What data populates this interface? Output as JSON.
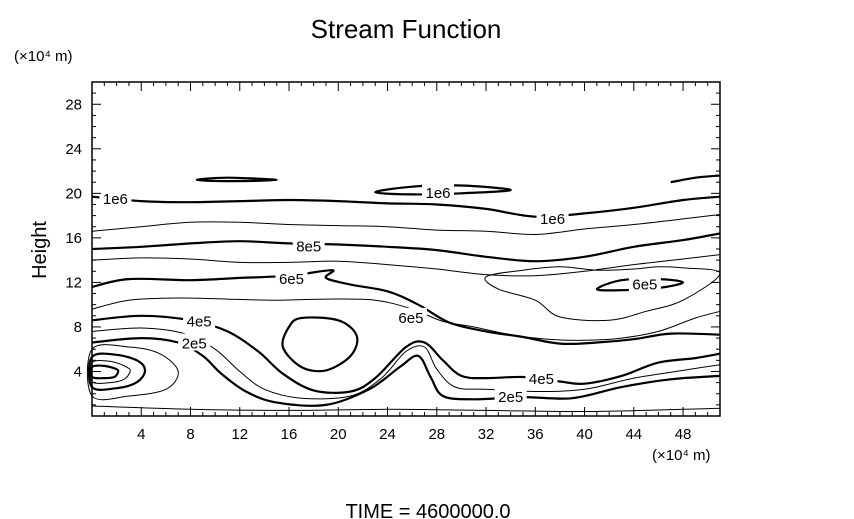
{
  "chart_data": {
    "type": "contour",
    "title": "Stream Function",
    "xlabel": "(×10⁴ m)",
    "ylabel": "Height",
    "yunit": "(×10⁴ m)",
    "xlim": [
      0,
      51
    ],
    "ylim": [
      0,
      30
    ],
    "xticks": [
      4,
      8,
      12,
      16,
      20,
      24,
      28,
      32,
      36,
      40,
      44,
      48
    ],
    "yticks": [
      4,
      8,
      12,
      16,
      20,
      24,
      28
    ],
    "footer": "TIME = 4600000.0",
    "line_color": "#000000",
    "contour_labels": [
      {
        "text": "1e6",
        "x": 1.9,
        "y": 19.6
      },
      {
        "text": "1e6",
        "x": 28.1,
        "y": 20.1
      },
      {
        "text": "1e6",
        "x": 37.4,
        "y": 17.8
      },
      {
        "text": "8e5",
        "x": 17.6,
        "y": 15.3
      },
      {
        "text": "6e5",
        "x": 16.2,
        "y": 12.4
      },
      {
        "text": "6e5",
        "x": 44.9,
        "y": 11.9
      },
      {
        "text": "6e5",
        "x": 25.9,
        "y": 8.9
      },
      {
        "text": "4e5",
        "x": 8.7,
        "y": 8.6
      },
      {
        "text": "2e5",
        "x": 8.3,
        "y": 6.6
      },
      {
        "text": "4e5",
        "x": 36.5,
        "y": 3.4
      },
      {
        "text": "2e5",
        "x": 34.0,
        "y": 1.8
      }
    ],
    "contours": [
      {
        "level": "1e6",
        "points": [
          [
            0,
            19.7
          ],
          [
            4,
            19.3
          ],
          [
            8,
            19.2
          ],
          [
            12,
            19.3
          ],
          [
            16,
            19.4
          ],
          [
            20,
            19.3
          ],
          [
            24,
            19.1
          ],
          [
            28,
            19.0
          ],
          [
            32,
            18.6
          ],
          [
            36,
            17.9
          ],
          [
            40,
            18.2
          ],
          [
            44,
            18.7
          ],
          [
            48,
            19.4
          ],
          [
            51,
            19.7
          ]
        ]
      },
      {
        "level": "1e6",
        "closed": true,
        "points": [
          [
            23,
            20.1
          ],
          [
            26,
            20.6
          ],
          [
            30,
            20.7
          ],
          [
            34,
            20.3
          ],
          [
            30,
            20.0
          ],
          [
            26,
            19.9
          ]
        ]
      },
      {
        "level": "1e6",
        "closed": true,
        "points": [
          [
            8.5,
            21.2
          ],
          [
            11,
            21.4
          ],
          [
            15,
            21.2
          ],
          [
            11,
            21.1
          ]
        ]
      },
      {
        "level": "1e6",
        "points": [
          [
            47,
            21.0
          ],
          [
            49,
            21.4
          ],
          [
            51,
            21.6
          ]
        ]
      },
      {
        "level": "9e5",
        "points": [
          [
            0,
            16.6
          ],
          [
            4,
            17.0
          ],
          [
            8,
            17.4
          ],
          [
            12,
            17.4
          ],
          [
            16,
            17.2
          ],
          [
            20,
            17.1
          ],
          [
            24,
            17.0
          ],
          [
            28,
            16.7
          ],
          [
            32,
            16.6
          ],
          [
            36,
            16.3
          ],
          [
            40,
            16.8
          ],
          [
            44,
            17.2
          ],
          [
            48,
            17.7
          ],
          [
            51,
            18.1
          ]
        ]
      },
      {
        "level": "8e5",
        "points": [
          [
            0,
            15.0
          ],
          [
            4,
            15.2
          ],
          [
            8,
            15.5
          ],
          [
            12,
            15.7
          ],
          [
            16,
            15.5
          ],
          [
            20,
            15.4
          ],
          [
            24,
            15.2
          ],
          [
            28,
            14.9
          ],
          [
            32,
            14.3
          ],
          [
            36,
            13.9
          ],
          [
            40,
            14.3
          ],
          [
            44,
            15.2
          ],
          [
            48,
            15.8
          ],
          [
            51,
            16.4
          ]
        ]
      },
      {
        "level": "7e5",
        "points": [
          [
            0,
            14.0
          ],
          [
            4,
            14.2
          ],
          [
            8,
            14.1
          ],
          [
            12,
            13.8
          ],
          [
            16,
            13.8
          ],
          [
            20,
            13.9
          ],
          [
            24,
            13.6
          ],
          [
            28,
            13.2
          ],
          [
            32,
            12.7
          ],
          [
            36,
            12.6
          ],
          [
            40,
            13.0
          ],
          [
            44,
            13.6
          ],
          [
            48,
            14.1
          ],
          [
            51,
            14.5
          ]
        ]
      },
      {
        "level": "6e5",
        "points": [
          [
            0,
            11.6
          ],
          [
            3,
            12.3
          ],
          [
            8,
            12.2
          ],
          [
            12,
            12.4
          ],
          [
            16,
            12.6
          ],
          [
            19.5,
            13.1
          ],
          [
            19,
            12.4
          ],
          [
            21,
            11.8
          ],
          [
            24,
            11.2
          ],
          [
            26.5,
            10.0
          ],
          [
            29,
            8.4
          ],
          [
            32,
            7.6
          ],
          [
            35,
            7.1
          ],
          [
            38,
            6.5
          ],
          [
            41,
            6.6
          ],
          [
            44,
            6.9
          ],
          [
            47,
            7.4
          ],
          [
            51,
            7.3
          ]
        ]
      },
      {
        "level": "6e5",
        "closed": true,
        "points": [
          [
            41,
            11.4
          ],
          [
            43,
            12.2
          ],
          [
            46,
            12.3
          ],
          [
            48,
            12.0
          ],
          [
            46,
            11.5
          ],
          [
            43,
            11.3
          ]
        ]
      },
      {
        "level": "5e5",
        "points": [
          [
            0,
            9.6
          ],
          [
            3,
            10.4
          ],
          [
            7,
            10.6
          ],
          [
            11,
            10.5
          ],
          [
            15,
            10.4
          ],
          [
            19,
            10.5
          ],
          [
            23,
            10.4
          ],
          [
            26,
            9.6
          ],
          [
            28.5,
            8.5
          ],
          [
            31,
            8.0
          ],
          [
            34,
            7.3
          ],
          [
            37,
            6.9
          ],
          [
            40,
            6.8
          ],
          [
            43,
            7.0
          ],
          [
            46,
            7.6
          ],
          [
            49,
            8.8
          ],
          [
            51,
            9.4
          ]
        ]
      },
      {
        "level": "5e5",
        "closed": true,
        "points": [
          [
            32,
            12.5
          ],
          [
            35,
            13.1
          ],
          [
            38,
            13.4
          ],
          [
            41,
            13.1
          ],
          [
            44,
            13.2
          ],
          [
            46,
            13.4
          ],
          [
            48,
            13.3
          ],
          [
            51,
            12.8
          ],
          [
            48,
            10.4
          ],
          [
            45,
            9.4
          ],
          [
            42,
            8.6
          ],
          [
            38,
            8.9
          ],
          [
            36,
            10.4
          ],
          [
            33,
            11.4
          ]
        ]
      },
      {
        "level": "4e5",
        "points": [
          [
            0,
            8.6
          ],
          [
            4,
            9.0
          ],
          [
            8,
            8.6
          ],
          [
            11,
            7.6
          ],
          [
            13.5,
            5.8
          ],
          [
            15.5,
            3.8
          ],
          [
            18,
            2.3
          ],
          [
            21,
            2.2
          ],
          [
            23,
            3.4
          ],
          [
            25.5,
            6.2
          ],
          [
            27,
            6.6
          ],
          [
            28.5,
            5.0
          ],
          [
            30,
            3.6
          ],
          [
            32,
            3.4
          ],
          [
            35,
            3.5
          ],
          [
            38,
            3.1
          ],
          [
            40,
            2.9
          ],
          [
            43,
            3.6
          ],
          [
            46,
            4.8
          ],
          [
            49,
            5.2
          ],
          [
            51,
            5.6
          ]
        ]
      },
      {
        "level": "4e5",
        "closed": true,
        "points": [
          [
            17,
            8.8
          ],
          [
            20,
            8.6
          ],
          [
            21.5,
            7.2
          ],
          [
            21,
            5.4
          ],
          [
            19,
            4.1
          ],
          [
            17,
            4.4
          ],
          [
            15.5,
            6.2
          ],
          [
            16,
            8.0
          ]
        ]
      },
      {
        "level": "3e5",
        "points": [
          [
            0,
            7.6
          ],
          [
            4,
            7.9
          ],
          [
            7.5,
            7.4
          ],
          [
            10,
            6.0
          ],
          [
            12,
            4.0
          ],
          [
            14,
            2.4
          ],
          [
            17,
            1.6
          ],
          [
            21,
            1.8
          ],
          [
            23.5,
            3.4
          ],
          [
            25.5,
            5.8
          ],
          [
            27,
            6.2
          ],
          [
            28,
            4.2
          ],
          [
            29.5,
            2.6
          ],
          [
            32,
            2.4
          ],
          [
            36,
            2.2
          ],
          [
            40,
            2.4
          ],
          [
            44,
            3.4
          ],
          [
            48,
            4.1
          ],
          [
            51,
            4.6
          ]
        ]
      },
      {
        "level": "2e5",
        "points": [
          [
            0,
            6.6
          ],
          [
            4,
            7.0
          ],
          [
            7,
            6.6
          ],
          [
            9,
            5.4
          ],
          [
            10.5,
            3.8
          ],
          [
            12.5,
            2.2
          ],
          [
            15,
            1.2
          ],
          [
            19,
            1.0
          ],
          [
            22.5,
            2.4
          ],
          [
            25,
            4.4
          ],
          [
            26.5,
            5.4
          ],
          [
            27.5,
            3.5
          ],
          [
            28.5,
            1.8
          ],
          [
            31,
            1.5
          ],
          [
            35,
            1.7
          ],
          [
            39,
            1.6
          ],
          [
            43,
            2.6
          ],
          [
            47,
            3.3
          ],
          [
            51,
            3.6
          ]
        ]
      },
      {
        "level": "1e5",
        "points": [
          [
            0,
            0.9
          ],
          [
            8,
            0.6
          ],
          [
            16,
            0.5
          ],
          [
            24,
            0.6
          ],
          [
            32,
            0.5
          ],
          [
            40,
            0.4
          ],
          [
            48,
            0.6
          ],
          [
            51,
            0.7
          ]
        ]
      },
      {
        "level": "1e5",
        "closed": true,
        "points": [
          [
            0,
            6.0
          ],
          [
            3,
            6.2
          ],
          [
            5.5,
            5.6
          ],
          [
            7,
            4.0
          ],
          [
            6,
            2.4
          ],
          [
            3,
            1.8
          ],
          [
            0,
            1.8
          ]
        ]
      },
      {
        "level": "0",
        "closed": true,
        "points": [
          [
            0,
            5.3
          ],
          [
            2,
            5.5
          ],
          [
            3.8,
            4.9
          ],
          [
            4.3,
            4.0
          ],
          [
            3.6,
            3.0
          ],
          [
            2,
            2.5
          ],
          [
            0,
            2.6
          ]
        ]
      },
      {
        "level": "-1e5",
        "closed": true,
        "points": [
          [
            0,
            4.8
          ],
          [
            1.5,
            4.9
          ],
          [
            2.8,
            4.4
          ],
          [
            3.1,
            4.0
          ],
          [
            2.6,
            3.3
          ],
          [
            1.5,
            3.0
          ],
          [
            0,
            3.1
          ]
        ]
      },
      {
        "level": "-2e5",
        "closed": true,
        "points": [
          [
            0,
            4.4
          ],
          [
            1,
            4.5
          ],
          [
            2,
            4.2
          ],
          [
            2.1,
            3.9
          ],
          [
            1.8,
            3.5
          ],
          [
            1,
            3.4
          ],
          [
            0,
            3.5
          ]
        ]
      }
    ]
  }
}
